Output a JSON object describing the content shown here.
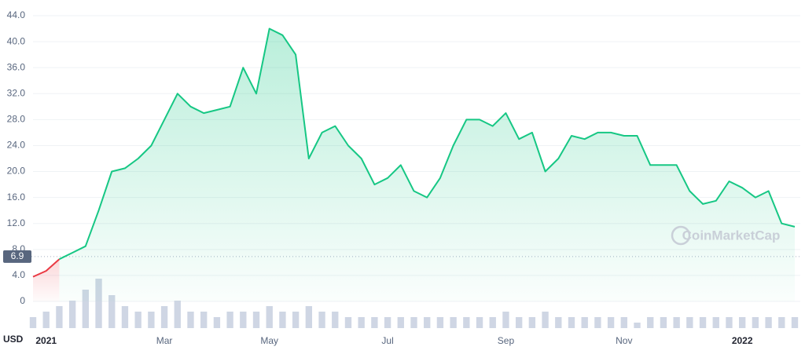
{
  "chart_data": {
    "type": "line",
    "currency": "USD",
    "watermark": "CoinMarketCap",
    "categories": [
      null,
      "2021",
      null,
      null,
      null,
      null,
      null,
      null,
      null,
      null,
      "Mar",
      null,
      null,
      null,
      null,
      null,
      null,
      null,
      "May",
      null,
      null,
      null,
      null,
      null,
      null,
      null,
      null,
      "Jul",
      null,
      null,
      null,
      null,
      null,
      null,
      null,
      null,
      "Sep",
      null,
      null,
      null,
      null,
      null,
      null,
      null,
      null,
      "Nov",
      null,
      null,
      null,
      null,
      null,
      null,
      null,
      null,
      "2022",
      null,
      null,
      null,
      null
    ],
    "values": [
      3.8,
      4.7,
      6.5,
      7.5,
      8.5,
      14,
      20,
      20.5,
      22,
      24,
      28,
      32,
      30,
      29,
      29.5,
      30,
      36,
      32,
      42,
      41,
      38,
      22,
      26,
      27,
      24,
      22,
      18,
      19,
      21,
      17,
      16,
      19,
      24,
      28,
      28,
      27,
      29,
      25,
      26,
      20,
      22,
      25.5,
      25,
      26,
      26,
      25.5,
      25.5,
      21,
      21,
      21,
      17,
      15,
      15.5,
      18.5,
      17.5,
      16,
      17,
      12,
      11.5
    ],
    "volume": [
      2,
      3,
      4,
      5,
      7,
      9,
      6,
      4,
      3,
      3,
      4,
      5,
      3,
      3,
      2,
      3,
      3,
      3,
      4,
      3,
      3,
      4,
      3,
      3,
      2,
      2,
      2,
      2,
      2,
      2,
      2,
      2,
      2,
      2,
      2,
      2,
      3,
      2,
      2,
      3,
      2,
      2,
      2,
      2,
      2,
      2,
      1,
      2,
      2,
      2,
      2,
      2,
      2,
      2,
      2,
      2,
      2,
      2,
      2
    ],
    "baseline": 6.9,
    "up_color": "#16c784",
    "down_color": "#ea3943",
    "volume_color": "#cfd6e4",
    "ylim": [
      0,
      44
    ],
    "yticks": [
      0,
      {
        "value": 4,
        "label": "4.0"
      },
      {
        "value": 8,
        "label": "8.0"
      },
      {
        "value": 12,
        "label": "12.0"
      },
      {
        "value": 16,
        "label": "16.0"
      },
      {
        "value": 20,
        "label": "20.0"
      },
      {
        "value": 24,
        "label": "24.0"
      },
      {
        "value": 28,
        "label": "28.0"
      },
      {
        "value": 32,
        "label": "32.0"
      },
      {
        "value": 36,
        "label": "36.0"
      },
      {
        "value": 40,
        "label": "40.0"
      },
      {
        "value": 44,
        "label": "44.0"
      }
    ],
    "grid": true
  }
}
